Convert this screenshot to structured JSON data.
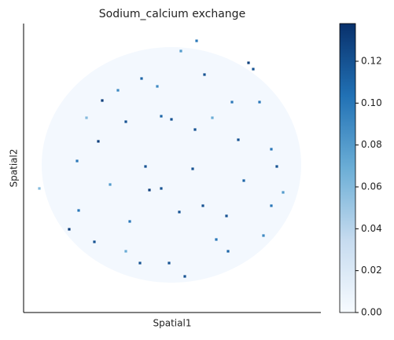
{
  "chart_data": {
    "type": "scatter",
    "title": "Sodium_calcium exchange",
    "x_label": "Spatial1",
    "y_label": "Spatial2",
    "xlim": [
      0,
      378
    ],
    "ylim": [
      0,
      368
    ],
    "x": [
      286,
      292,
      220,
      200,
      100,
      130,
      95,
      188,
      175,
      265,
      273,
      322,
      315,
      155,
      160,
      175,
      198,
      228,
      258,
      260,
      245,
      70,
      58,
      90,
      135,
      148,
      205,
      185,
      315,
      330,
      20,
      110,
      68,
      230,
      150,
      300,
      218,
      120,
      215,
      280,
      170,
      240,
      80,
      305,
      130
    ],
    "y": [
      318,
      310,
      346,
      333,
      270,
      243,
      218,
      246,
      250,
      268,
      220,
      186,
      208,
      186,
      156,
      158,
      128,
      136,
      123,
      78,
      93,
      130,
      106,
      90,
      116,
      63,
      46,
      63,
      136,
      153,
      158,
      163,
      193,
      303,
      298,
      268,
      233,
      283,
      183,
      168,
      288,
      248,
      248,
      98,
      78
    ],
    "values": [
      0.13,
      0.12,
      0.1,
      0.08,
      0.13,
      0.12,
      0.13,
      0.12,
      0.11,
      0.1,
      0.12,
      0.12,
      0.1,
      0.12,
      0.13,
      0.12,
      0.12,
      0.12,
      0.12,
      0.11,
      0.1,
      0.1,
      0.13,
      0.12,
      0.1,
      0.12,
      0.12,
      0.12,
      0.1,
      0.08,
      0.06,
      0.08,
      0.1,
      0.12,
      0.11,
      0.1,
      0.12,
      0.09,
      0.12,
      0.11,
      0.09,
      0.07,
      0.06,
      0.09,
      0.07
    ],
    "colormap": [
      "#f7fbff",
      "#c6dbef",
      "#6baed6",
      "#2171b5",
      "#08306b"
    ],
    "clim": [
      0,
      0.138
    ],
    "cticks": [
      {
        "value": 0,
        "label": "0.00"
      },
      {
        "value": 0.02,
        "label": "0.02"
      },
      {
        "value": 0.04,
        "label": "0.04"
      },
      {
        "value": 0.06,
        "label": "0.06"
      },
      {
        "value": 0.08,
        "label": "0.08"
      },
      {
        "value": 0.1,
        "label": "0.10"
      },
      {
        "value": 0.12,
        "label": "0.12"
      }
    ]
  }
}
